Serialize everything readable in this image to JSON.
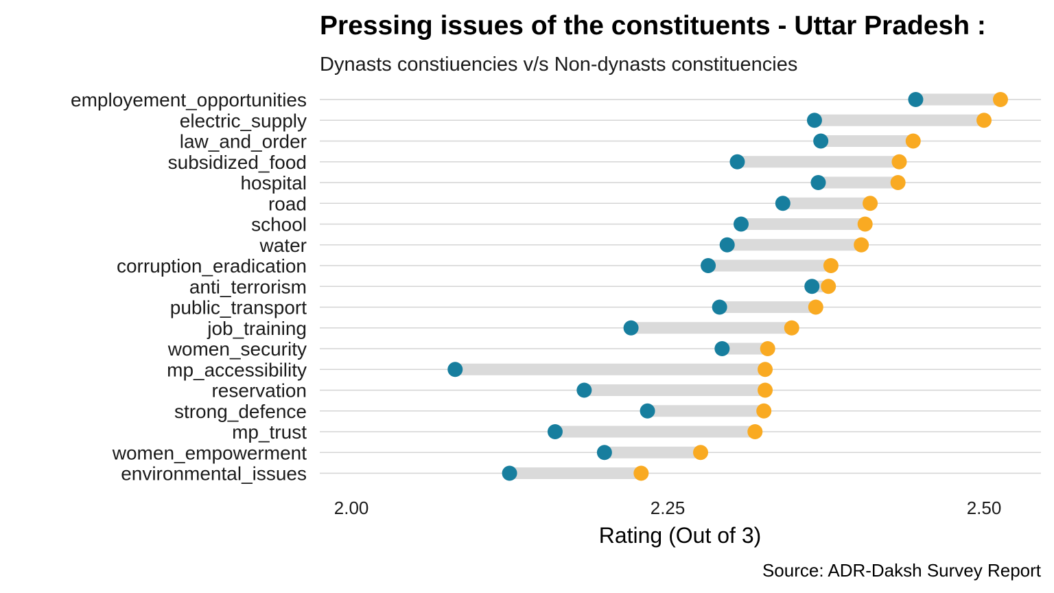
{
  "chart_data": {
    "type": "dumbbell",
    "title": "Pressing issues of the constituents - Uttar Pradesh :",
    "subtitle": "Dynasts constiuencies v/s Non-dynasts constituencies",
    "xlabel": "Rating (Out of 3)",
    "ylabel": "",
    "caption": "Source: ADR-Daksh Survey Report",
    "xlim": [
      1.975,
      2.545
    ],
    "xticks": [
      2.0,
      2.25,
      2.5
    ],
    "xtick_labels": [
      "2.00",
      "2.25",
      "2.50"
    ],
    "grid": "horizontal",
    "legend": "none",
    "colors": {
      "blue": "#177e9e",
      "orange": "#f9aa22",
      "segment": "#dadada",
      "grid": "#d4d4d4"
    },
    "categories": [
      "employement_opportunities",
      "electric_supply",
      "law_and_order",
      "subsidized_food",
      "hospital",
      "road",
      "school",
      "water",
      "corruption_eradication",
      "anti_terrorism",
      "public_transport",
      "job_training",
      "women_security",
      "mp_accessibility",
      "reservation",
      "strong_defence",
      "mp_trust",
      "women_empowerment",
      "environmental_issues"
    ],
    "series": [
      {
        "color": "#177e9e",
        "values": [
          2.446,
          2.366,
          2.371,
          2.305,
          2.369,
          2.341,
          2.308,
          2.297,
          2.282,
          2.364,
          2.291,
          2.221,
          2.293,
          2.082,
          2.184,
          2.234,
          2.161,
          2.2,
          2.125
        ]
      },
      {
        "color": "#f9aa22",
        "values": [
          2.513,
          2.5,
          2.444,
          2.433,
          2.432,
          2.41,
          2.406,
          2.403,
          2.379,
          2.377,
          2.367,
          2.348,
          2.329,
          2.327,
          2.327,
          2.326,
          2.319,
          2.276,
          2.229
        ]
      }
    ]
  }
}
